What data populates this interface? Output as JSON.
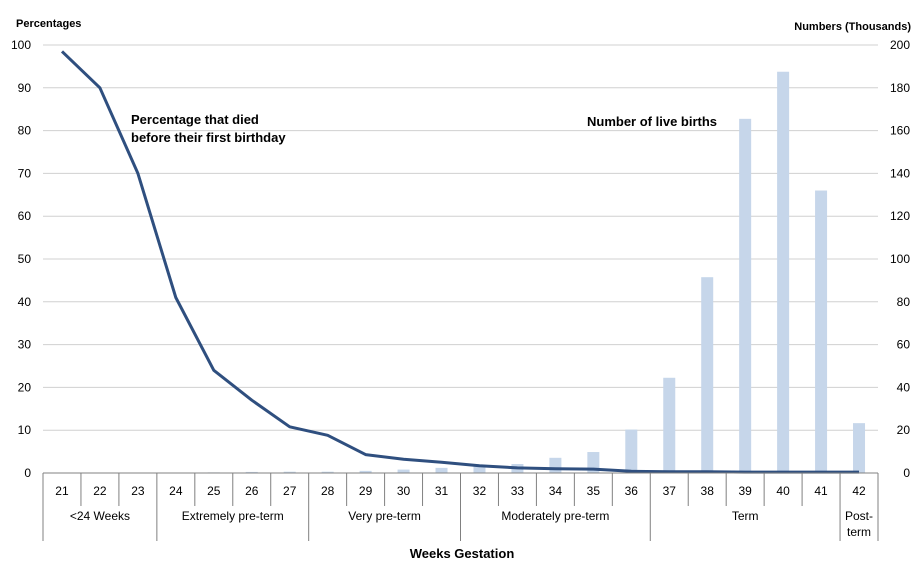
{
  "chart_data": {
    "type": "bar+line",
    "categories": [
      "21",
      "22",
      "23",
      "24",
      "25",
      "26",
      "27",
      "28",
      "29",
      "30",
      "31",
      "32",
      "33",
      "34",
      "35",
      "36",
      "37",
      "38",
      "39",
      "40",
      "41",
      "42"
    ],
    "bar_series": {
      "name": "Number of live births",
      "axis": "right",
      "values": [
        0.1,
        0.1,
        0.1,
        0.1,
        0.3,
        0.5,
        0.6,
        0.6,
        1.0,
        1.6,
        2.4,
        3.7,
        4.2,
        7.1,
        9.8,
        20.3,
        44.5,
        91.5,
        165.5,
        187.5,
        132.0,
        23.3
      ]
    },
    "line_series": {
      "name": "Percentage that died before their first birthday",
      "axis": "left",
      "values": [
        98.5,
        90.0,
        70.0,
        41.0,
        24.0,
        17.0,
        10.8,
        8.8,
        4.3,
        3.2,
        2.5,
        1.7,
        1.2,
        1.0,
        0.9,
        0.4,
        0.3,
        0.3,
        0.2,
        0.2,
        0.2,
        0.2
      ]
    },
    "left_axis": {
      "label": "Percentages",
      "ylim": [
        0,
        100
      ],
      "ticks": [
        "0",
        "10",
        "20",
        "30",
        "40",
        "50",
        "60",
        "70",
        "80",
        "90",
        "100"
      ]
    },
    "right_axis": {
      "label": "Numbers (Thousands)",
      "ylim": [
        0,
        200
      ],
      "ticks": [
        "0",
        "20",
        "40",
        "60",
        "80",
        "100",
        "120",
        "140",
        "160",
        "180",
        "200"
      ]
    },
    "xlabel": "Weeks Gestation",
    "groups": [
      {
        "label": "<24 Weeks",
        "start": 0,
        "end": 2
      },
      {
        "label": "Extremely pre-term",
        "start": 3,
        "end": 6
      },
      {
        "label": "Very pre-term",
        "start": 7,
        "end": 10
      },
      {
        "label": "Moderately pre-term",
        "start": 11,
        "end": 15
      },
      {
        "label": "Term",
        "start": 16,
        "end": 20
      },
      {
        "label": "Post-term",
        "start": 21,
        "end": 21
      }
    ],
    "annotations": {
      "line_label_1": "Percentage that died",
      "line_label_2": "before their first birthday",
      "bar_label": "Number of live births"
    },
    "colors": {
      "bar": "#c6d6ea",
      "line": "#2f4f7f",
      "grid": "#d0d0d0",
      "axis": "#808080"
    },
    "grid": true
  }
}
